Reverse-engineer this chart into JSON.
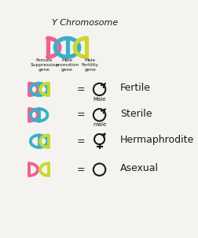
{
  "title": "Y Chromosome",
  "background_color": "#f5f3f0",
  "pink": "#f06090",
  "blue": "#3ab0c8",
  "yellow": "#c8d830",
  "black": "#1a1a1a",
  "gene_labels": [
    "Female\nSuppression\ngene",
    "Male\npromotion\ngene",
    "Male\nFertility\ngene"
  ],
  "rows": [
    {
      "genes": [
        "pink",
        "blue",
        "yellow"
      ],
      "symbol": "male_fertile",
      "label": "Fertile",
      "sublabel": "Male"
    },
    {
      "genes": [
        "pink",
        "blue",
        null
      ],
      "symbol": "male_sterile",
      "label": "Sterile",
      "sublabel": "male"
    },
    {
      "genes": [
        null,
        "blue",
        "yellow"
      ],
      "symbol": "hermaphrodite",
      "label": "Hermaphrodite",
      "sublabel": null
    },
    {
      "genes": [
        "pink",
        null,
        "yellow"
      ],
      "symbol": "asexual",
      "label": "Asexual",
      "sublabel": null
    }
  ]
}
